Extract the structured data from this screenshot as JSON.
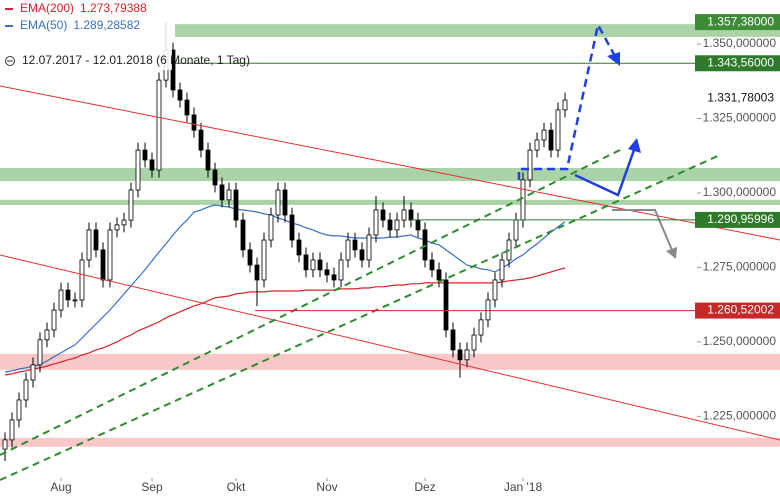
{
  "chart_data": {
    "type": "candlestick",
    "subtitle": "12.07.2017 - 12.01.2018 (6 Monate, 1 Tag)",
    "categories": [
      null,
      null,
      null,
      null,
      null,
      null,
      null,
      null,
      "Aug",
      null,
      null,
      null,
      null,
      null,
      null,
      null,
      null,
      null,
      null,
      null,
      null,
      "Sep",
      null,
      null,
      null,
      null,
      null,
      null,
      null,
      null,
      null,
      null,
      null,
      "Okt",
      null,
      null,
      null,
      null,
      null,
      null,
      null,
      null,
      null,
      null,
      null,
      null,
      "Nov",
      null,
      null,
      null,
      null,
      null,
      null,
      null,
      null,
      null,
      null,
      null,
      null,
      null,
      "Dez",
      null,
      null,
      null,
      null,
      null,
      null,
      null,
      null,
      null,
      null,
      null,
      null,
      null,
      "Jan '18",
      null,
      null,
      null,
      null,
      null,
      null
    ],
    "open": [
      1.214,
      1.2171,
      1.2238,
      1.2305,
      1.2372,
      1.2423,
      1.2507,
      1.254,
      1.2607,
      1.2674,
      1.2641,
      1.2641,
      1.2775,
      1.2876,
      1.2809,
      1.2708,
      1.2876,
      1.2893,
      1.2909,
      1.301,
      1.3144,
      1.3111,
      1.3077,
      1.3379,
      1.348,
      1.3346,
      1.3312,
      1.3262,
      1.3211,
      1.3144,
      1.3077,
      1.3027,
      1.2977,
      1.301,
      1.2909,
      1.2809,
      1.2758,
      1.2708,
      1.2842,
      1.2926,
      1.301,
      1.2926,
      1.2842,
      1.2792,
      1.2742,
      1.2775,
      1.2742,
      1.2725,
      1.2708,
      1.2775,
      1.2842,
      1.2809,
      1.2775,
      1.2859,
      1.2943,
      1.2909,
      1.2876,
      1.2909,
      1.2943,
      1.2909,
      1.2876,
      1.2775,
      1.2742,
      1.2708,
      1.254,
      1.2473,
      1.244,
      1.2473,
      1.2523,
      1.2574,
      1.2641,
      1.2708,
      1.2775,
      1.2842,
      1.2909,
      1.3044,
      1.3144,
      1.3178,
      1.3211,
      1.3144,
      1.3279
    ],
    "high": [
      1.2196,
      1.2263,
      1.233,
      1.2397,
      1.2448,
      1.2532,
      1.2565,
      1.2632,
      1.2699,
      1.2699,
      1.2666,
      1.28,
      1.2901,
      1.2901,
      1.2834,
      1.2901,
      1.2918,
      1.2934,
      1.3035,
      1.3169,
      1.3169,
      1.3136,
      1.3404,
      1.3575,
      1.3505,
      1.3371,
      1.3337,
      1.3287,
      1.3236,
      1.3169,
      1.3102,
      1.3052,
      1.3035,
      1.3035,
      1.2934,
      1.2834,
      1.2783,
      1.2867,
      1.2951,
      1.3035,
      1.3035,
      1.2951,
      1.2867,
      1.2817,
      1.28,
      1.28,
      1.2767,
      1.275,
      1.28,
      1.2867,
      1.2867,
      1.2834,
      1.2884,
      1.299,
      1.2968,
      1.2934,
      1.2934,
      1.299,
      1.2968,
      1.2934,
      1.2901,
      1.28,
      1.2767,
      1.2733,
      1.2565,
      1.2498,
      1.2498,
      1.2548,
      1.2599,
      1.2666,
      1.2733,
      1.28,
      1.2867,
      1.2934,
      1.3069,
      1.3169,
      1.3203,
      1.3236,
      1.3236,
      1.3304,
      1.3337
    ],
    "low": [
      1.21,
      1.2146,
      1.2213,
      1.228,
      1.2347,
      1.2398,
      1.2482,
      1.2515,
      1.2582,
      1.2616,
      1.2616,
      1.2616,
      1.275,
      1.2784,
      1.2683,
      1.2683,
      1.2851,
      1.2868,
      1.2884,
      1.2985,
      1.3086,
      1.3052,
      1.3052,
      1.3354,
      1.3321,
      1.3287,
      1.3237,
      1.3186,
      1.3119,
      1.3052,
      1.3002,
      1.2952,
      1.2952,
      1.2884,
      1.2784,
      1.2733,
      1.262,
      1.2683,
      1.2817,
      1.2901,
      1.2901,
      1.2817,
      1.2767,
      1.2717,
      1.2717,
      1.2717,
      1.27,
      1.2683,
      1.2683,
      1.275,
      1.2784,
      1.275,
      1.275,
      1.2834,
      1.2884,
      1.2851,
      1.2851,
      1.2884,
      1.2884,
      1.2851,
      1.275,
      1.2717,
      1.2683,
      1.2515,
      1.2448,
      1.238,
      1.2415,
      1.2448,
      1.2498,
      1.2549,
      1.2616,
      1.2683,
      1.275,
      1.2817,
      1.2884,
      1.3019,
      1.3119,
      1.3153,
      1.3119,
      1.3119,
      1.3254
    ],
    "close": [
      1.2171,
      1.2238,
      1.2305,
      1.2372,
      1.2423,
      1.2507,
      1.254,
      1.2607,
      1.2674,
      1.2641,
      1.2641,
      1.2775,
      1.2876,
      1.2809,
      1.2708,
      1.2876,
      1.2893,
      1.2909,
      1.301,
      1.3144,
      1.3111,
      1.3077,
      1.3379,
      1.348,
      1.3346,
      1.3312,
      1.3262,
      1.3211,
      1.3144,
      1.3077,
      1.3027,
      1.2977,
      1.301,
      1.2909,
      1.2809,
      1.2758,
      1.2708,
      1.2842,
      1.2926,
      1.301,
      1.2926,
      1.2842,
      1.2792,
      1.2742,
      1.2775,
      1.2742,
      1.2725,
      1.2708,
      1.2775,
      1.2842,
      1.2809,
      1.2775,
      1.2859,
      1.2943,
      1.2909,
      1.2876,
      1.2909,
      1.2943,
      1.2909,
      1.2876,
      1.2775,
      1.2742,
      1.2708,
      1.254,
      1.2473,
      1.244,
      1.2473,
      1.2523,
      1.2574,
      1.2641,
      1.2708,
      1.2775,
      1.2842,
      1.2909,
      1.3044,
      1.3144,
      1.3178,
      1.3211,
      1.3144,
      1.3279,
      1.3312
    ],
    "up_color": "#ffffff",
    "down_color": "#000000",
    "series": [
      {
        "name": "EMA(200)",
        "legend_value": "1.273,79388",
        "color": "#d8232a",
        "values": [
          1.2389,
          1.2393,
          1.2399,
          1.2403,
          1.2409,
          1.2413,
          1.2419,
          1.2426,
          1.2433,
          1.244,
          1.2446,
          1.2456,
          1.2463,
          1.2473,
          1.248,
          1.249,
          1.25,
          1.2513,
          1.2523,
          1.2537,
          1.2547,
          1.2557,
          1.2567,
          1.2581,
          1.2591,
          1.2601,
          1.2611,
          1.2621,
          1.2628,
          1.2638,
          1.2648,
          1.2651,
          1.2654,
          1.2661,
          1.2664,
          1.2668,
          1.2668,
          1.2668,
          1.2671,
          1.2671,
          1.2671,
          1.2671,
          1.2671,
          1.2674,
          1.2674,
          1.2674,
          1.2674,
          1.2674,
          1.2678,
          1.2678,
          1.2678,
          1.2681,
          1.2681,
          1.2685,
          1.2685,
          1.2688,
          1.2691,
          1.2691,
          1.2695,
          1.2695,
          1.2698,
          1.2698,
          1.2698,
          1.2698,
          1.2698,
          1.2698,
          1.2698,
          1.2698,
          1.2698,
          1.2698,
          1.2698,
          1.2701,
          1.2705,
          1.2708,
          1.2711,
          1.2715,
          1.2721,
          1.2728,
          1.2735,
          1.2742,
          1.2748
        ]
      },
      {
        "name": "EMA(50)",
        "legend_value": "1.289,28582",
        "color": "#3a6fc4",
        "values": [
          1.2399,
          1.2403,
          1.2409,
          1.2413,
          1.2419,
          1.2423,
          1.2436,
          1.245,
          1.2463,
          1.2477,
          1.249,
          1.2513,
          1.2537,
          1.256,
          1.2584,
          1.2607,
          1.2634,
          1.2661,
          1.2688,
          1.2715,
          1.2742,
          1.2772,
          1.2802,
          1.2829,
          1.2859,
          1.2886,
          1.2909,
          1.2936,
          1.2943,
          1.2953,
          1.296,
          1.2956,
          1.2953,
          1.2946,
          1.2943,
          1.294,
          1.2936,
          1.293,
          1.2926,
          1.2916,
          1.2909,
          1.2899,
          1.2893,
          1.2883,
          1.2876,
          1.2866,
          1.2859,
          1.2856,
          1.2856,
          1.2852,
          1.2849,
          1.2849,
          1.2849,
          1.2849,
          1.2849,
          1.2852,
          1.2852,
          1.2856,
          1.2859,
          1.2849,
          1.2842,
          1.2832,
          1.2826,
          1.2809,
          1.2792,
          1.2775,
          1.2758,
          1.2752,
          1.2745,
          1.2742,
          1.2735,
          1.2748,
          1.2762,
          1.2779,
          1.2792,
          1.2812,
          1.2829,
          1.2849,
          1.2869,
          1.2886,
          1.2903
        ]
      }
    ],
    "ylim": [
      1.2043,
      1.3648
    ],
    "yticks": [
      {
        "value": 1.35,
        "label": "1.350,000000"
      },
      {
        "value": 1.325,
        "label": "1.325,000000"
      },
      {
        "value": 1.3,
        "label": "1.300,000000"
      },
      {
        "value": 1.275,
        "label": "1.275,000000"
      },
      {
        "value": 1.25,
        "label": "1.250,000000"
      },
      {
        "value": 1.225,
        "label": "1.225,000000"
      }
    ],
    "zones": [
      {
        "from": 1.3524,
        "to": 1.3567,
        "color": "#aad3a8"
      },
      {
        "from": 1.304,
        "to": 1.3084,
        "color": "#aad3a8"
      },
      {
        "from": 1.296,
        "to": 1.2977,
        "color": "#aad3a8"
      },
      {
        "from": 1.2406,
        "to": 1.246,
        "color": "#f8c8c8"
      },
      {
        "from": 1.2148,
        "to": 1.2178,
        "color": "#f8c8c8"
      }
    ],
    "levels": [
      {
        "value": 1.35738,
        "label": "1.357,38000",
        "color": "#3c8c36"
      },
      {
        "value": 1.34356,
        "label": "1.343,56000",
        "color": "#2f7a2a"
      },
      {
        "value": 1.29096,
        "label": "1.290,95996",
        "color": "#2f7a2a"
      },
      {
        "value": 1.26052,
        "label": "1.260,52002",
        "color": "#c62828"
      }
    ],
    "last": {
      "value": 1.33178003,
      "label": "1.331,78003"
    }
  }
}
